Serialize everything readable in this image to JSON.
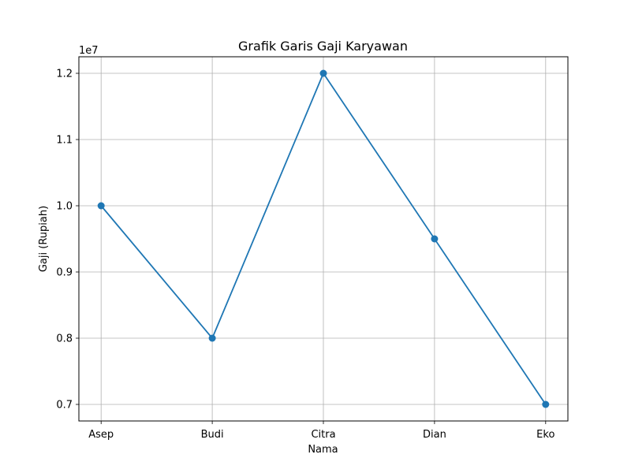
{
  "chart_data": {
    "type": "line",
    "title": "Grafik Garis Gaji Karyawan",
    "xlabel": "Nama",
    "ylabel": "Gaji (Rupiah)",
    "y_offset_label": "1e7",
    "categories": [
      "Asep",
      "Budi",
      "Citra",
      "Dian",
      "Eko"
    ],
    "series": [
      {
        "values": [
          10000000,
          8000000,
          12000000,
          9500000,
          7000000
        ]
      }
    ],
    "ylim": [
      6750000,
      12250000
    ],
    "yticks": [
      7000000,
      8000000,
      9000000,
      10000000,
      11000000,
      12000000
    ],
    "ytick_labels": [
      "0.7",
      "0.8",
      "0.9",
      "1.0",
      "1.1",
      "1.2"
    ],
    "grid": true,
    "line_color": "#1f77b4"
  }
}
